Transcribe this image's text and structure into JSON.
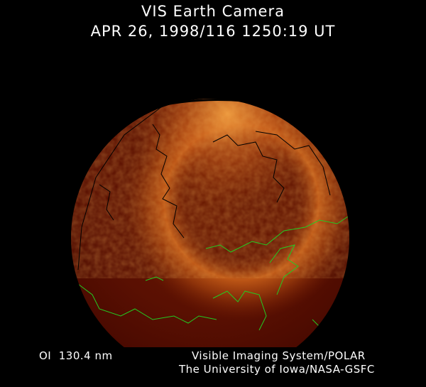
{
  "header": {
    "title": "VIS Earth Camera",
    "timestamp": "APR 26, 1998/116 1250:19 UT"
  },
  "footer": {
    "band": "OI  130.4 nm",
    "credit_line1": "Visible Imaging System/POLAR",
    "credit_line2": "The University of Iowa/NASA-GSFC"
  },
  "colors": {
    "background": "#000000",
    "disk_dark": "#4a0a00",
    "aurora": "#f0a040",
    "coastline_day": "#22cc22",
    "coastline_night": "#000000"
  }
}
